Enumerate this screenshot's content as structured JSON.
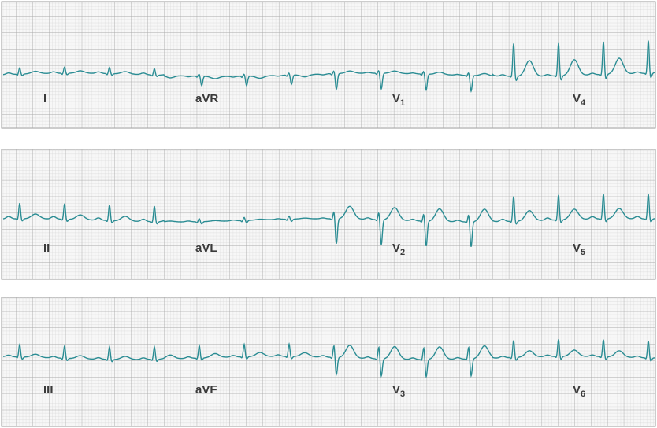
{
  "strips": [
    {
      "leads": [
        {
          "name": "I"
        },
        {
          "name": "aVR"
        },
        {
          "name": "V",
          "sub": "1"
        },
        {
          "name": "V",
          "sub": "4"
        }
      ]
    },
    {
      "leads": [
        {
          "name": "II"
        },
        {
          "name": "aVL"
        },
        {
          "name": "V",
          "sub": "2"
        },
        {
          "name": "V",
          "sub": "5"
        }
      ]
    },
    {
      "leads": [
        {
          "name": "III"
        },
        {
          "name": "aVF"
        },
        {
          "name": "V",
          "sub": "3"
        },
        {
          "name": "V",
          "sub": "6"
        }
      ]
    }
  ]
}
